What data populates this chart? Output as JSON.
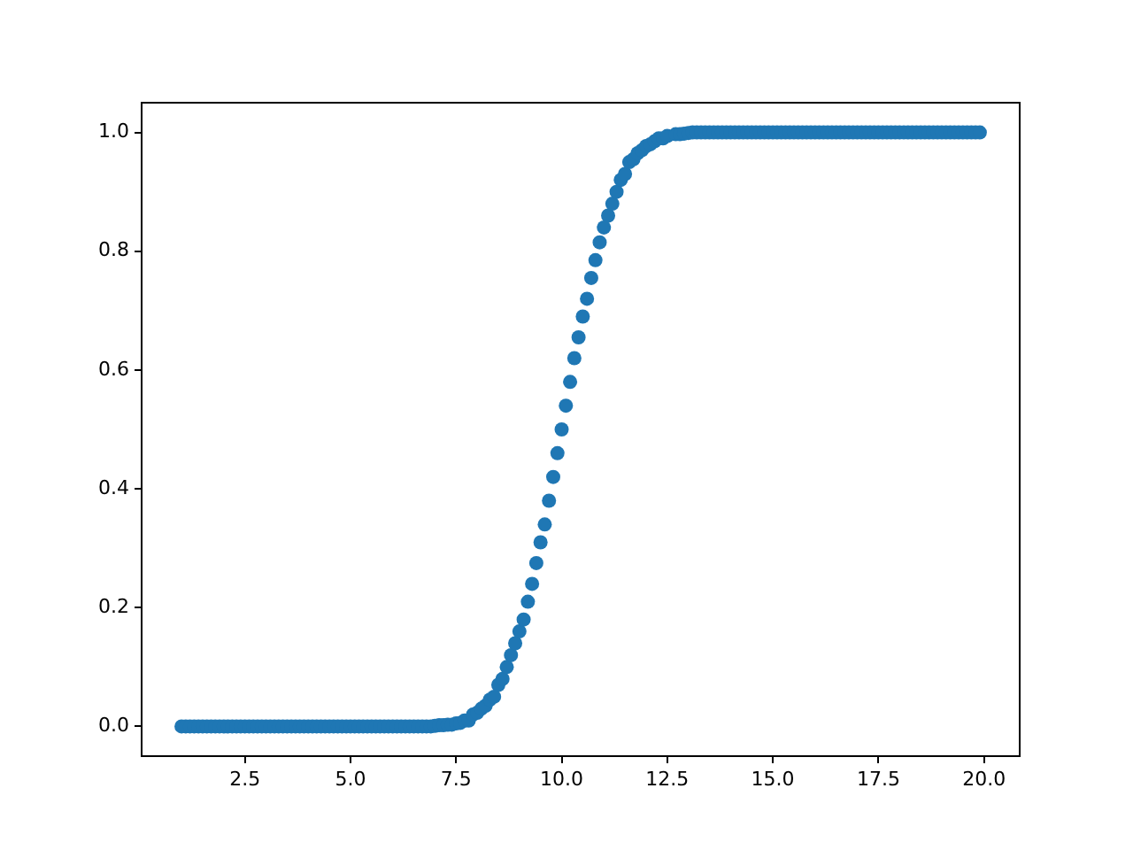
{
  "chart_data": {
    "type": "scatter",
    "marker": "circle",
    "grid": false,
    "legend": false,
    "xlim": [
      0.055,
      20.845
    ],
    "ylim": [
      -0.05,
      1.05
    ],
    "xticks": [
      {
        "value": 2.5,
        "label": "2.5"
      },
      {
        "value": 5,
        "label": "5.0"
      },
      {
        "value": 7.5,
        "label": "7.5"
      },
      {
        "value": 10,
        "label": "10.0"
      },
      {
        "value": 12.5,
        "label": "12.5"
      },
      {
        "value": 15,
        "label": "15.0"
      },
      {
        "value": 17.5,
        "label": "17.5"
      },
      {
        "value": 20,
        "label": "20.0"
      }
    ],
    "yticks": [
      {
        "value": 0,
        "label": "0.0"
      },
      {
        "value": 0.2,
        "label": "0.2"
      },
      {
        "value": 0.4,
        "label": "0.4"
      },
      {
        "value": 0.6,
        "label": "0.6"
      },
      {
        "value": 0.8,
        "label": "0.8"
      },
      {
        "value": 1,
        "label": "1.0"
      }
    ],
    "series": [
      {
        "color": "#1f77b4",
        "x": [
          1.0,
          1.1,
          1.2,
          1.3,
          1.4,
          1.5,
          1.6,
          1.7,
          1.8,
          1.9,
          2.0,
          2.1,
          2.2,
          2.3,
          2.4,
          2.5,
          2.6,
          2.7,
          2.8,
          2.9,
          3.0,
          3.1,
          3.2,
          3.3,
          3.4,
          3.5,
          3.6,
          3.7,
          3.8,
          3.9,
          4.0,
          4.1,
          4.2,
          4.3,
          4.4,
          4.5,
          4.6,
          4.7,
          4.8,
          4.9,
          5.0,
          5.1,
          5.2,
          5.3,
          5.4,
          5.5,
          5.6,
          5.7,
          5.8,
          5.9,
          6.0,
          6.1,
          6.2,
          6.3,
          6.4,
          6.5,
          6.6,
          6.7,
          6.8,
          6.9,
          7.0,
          7.1,
          7.2,
          7.3,
          7.4,
          7.5,
          7.6,
          7.7,
          7.8,
          7.9,
          8.0,
          8.1,
          8.2,
          8.3,
          8.4,
          8.5,
          8.6,
          8.7,
          8.8,
          8.9,
          9.0,
          9.1,
          9.2,
          9.3,
          9.4,
          9.5,
          9.6,
          9.7,
          9.8,
          9.9,
          10.0,
          10.1,
          10.2,
          10.3,
          10.4,
          10.5,
          10.6,
          10.7,
          10.8,
          10.9,
          11.0,
          11.1,
          11.2,
          11.3,
          11.4,
          11.5,
          11.6,
          11.7,
          11.8,
          11.9,
          12.0,
          12.1,
          12.2,
          12.3,
          12.4,
          12.5,
          12.6,
          12.7,
          12.8,
          12.9,
          13.0,
          13.1,
          13.2,
          13.3,
          13.4,
          13.5,
          13.6,
          13.7,
          13.8,
          13.9,
          14.0,
          14.1,
          14.2,
          14.3,
          14.4,
          14.5,
          14.6,
          14.7,
          14.8,
          14.9,
          15.0,
          15.1,
          15.2,
          15.3,
          15.4,
          15.5,
          15.6,
          15.7,
          15.8,
          15.9,
          16.0,
          16.1,
          16.2,
          16.3,
          16.4,
          16.5,
          16.6,
          16.7,
          16.8,
          16.9,
          17.0,
          17.1,
          17.2,
          17.3,
          17.4,
          17.5,
          17.6,
          17.7,
          17.8,
          17.9,
          18.0,
          18.1,
          18.2,
          18.3,
          18.4,
          18.5,
          18.6,
          18.7,
          18.8,
          18.9,
          19.0,
          19.1,
          19.2,
          19.3,
          19.4,
          19.5,
          19.6,
          19.7,
          19.8,
          19.9
        ],
        "values": [
          0,
          0,
          0,
          0,
          0,
          0,
          0,
          0,
          0,
          0,
          0,
          0,
          0,
          0,
          0,
          0,
          0,
          0,
          0,
          0,
          0,
          0,
          0,
          0,
          0,
          0,
          0,
          0,
          0,
          0,
          0,
          0,
          0,
          0,
          0,
          0,
          0,
          0,
          0,
          0,
          0,
          0,
          0,
          0,
          0,
          0,
          0,
          0,
          0,
          0,
          0,
          0,
          0,
          0,
          0,
          0,
          0,
          0,
          0,
          0,
          0.001,
          0.002,
          0.002,
          0.003,
          0.003,
          0.005,
          0.006,
          0.01,
          0.01,
          0.02,
          0.023,
          0.03,
          0.035,
          0.045,
          0.05,
          0.07,
          0.08,
          0.1,
          0.12,
          0.14,
          0.16,
          0.18,
          0.21,
          0.24,
          0.275,
          0.31,
          0.34,
          0.38,
          0.42,
          0.46,
          0.5,
          0.54,
          0.58,
          0.62,
          0.655,
          0.69,
          0.72,
          0.755,
          0.785,
          0.815,
          0.84,
          0.86,
          0.88,
          0.9,
          0.92,
          0.93,
          0.95,
          0.955,
          0.965,
          0.97,
          0.977,
          0.98,
          0.985,
          0.99,
          0.99,
          0.994,
          null,
          0.997,
          0.997,
          0.998,
          0.999,
          1,
          1,
          1,
          1,
          1,
          1,
          1,
          1,
          1,
          1,
          1,
          1,
          1,
          1,
          1,
          1,
          1,
          1,
          1,
          1,
          1,
          1,
          1,
          1,
          1,
          1,
          1,
          1,
          1,
          1,
          1,
          1,
          1,
          1,
          1,
          1,
          1,
          1,
          1,
          1,
          1,
          1,
          1,
          1,
          1,
          1,
          1,
          1,
          1,
          1,
          1,
          1,
          1,
          1,
          1,
          1,
          1,
          1,
          1,
          1,
          1,
          1,
          1,
          1,
          1,
          1,
          1,
          1,
          1
        ]
      }
    ]
  }
}
